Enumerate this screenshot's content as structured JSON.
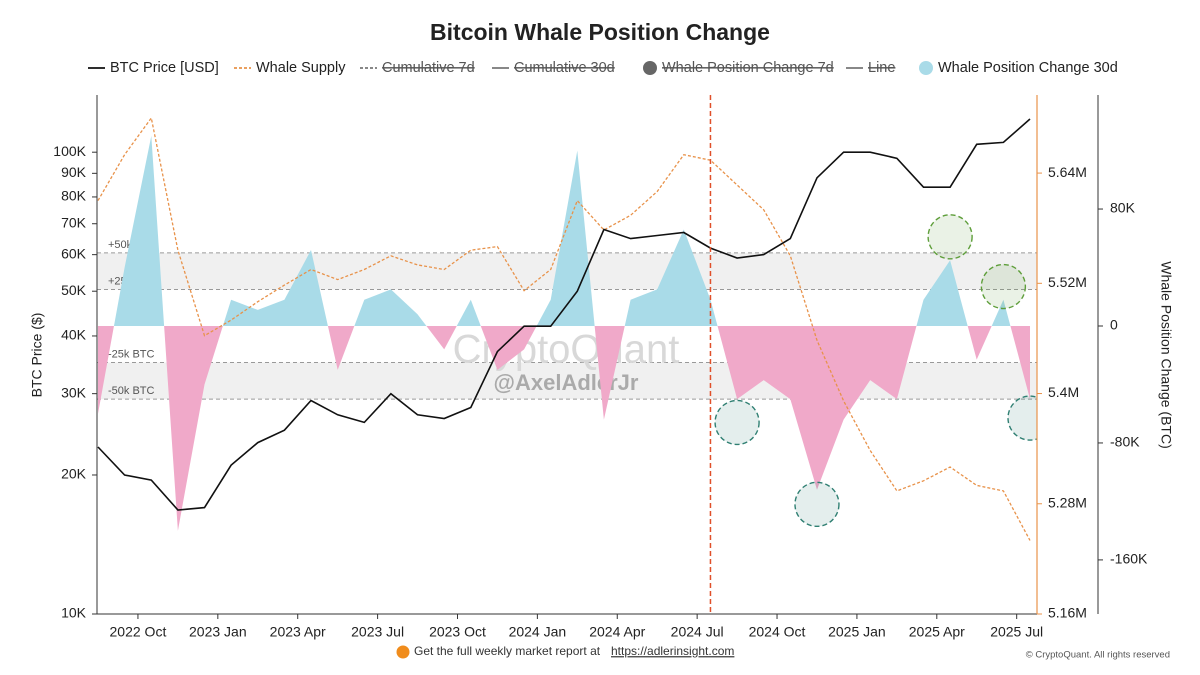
{
  "chart_data": {
    "type": "line",
    "title": "Bitcoin Whale Position Change",
    "y_label": "BTC Price ($)",
    "y3_label": "Whale Position Change (BTC)",
    "x": [
      "2022-08",
      "2022-09",
      "2022-10",
      "2022-11",
      "2022-12",
      "2023-01",
      "2023-02",
      "2023-03",
      "2023-04",
      "2023-05",
      "2023-06",
      "2023-07",
      "2023-08",
      "2023-09",
      "2023-10",
      "2023-11",
      "2023-12",
      "2024-01",
      "2024-02",
      "2024-03",
      "2024-04",
      "2024-05",
      "2024-06",
      "2024-07",
      "2024-08",
      "2024-09",
      "2024-10",
      "2024-11",
      "2024-12",
      "2025-01",
      "2025-02",
      "2025-03",
      "2025-04",
      "2025-05",
      "2025-06",
      "2025-07"
    ],
    "xlim": [
      "2022-08",
      "2025-07"
    ],
    "xticks": [
      {
        "value": "2022-10",
        "label": "2022 Oct"
      },
      {
        "value": "2023-01",
        "label": "2023 Jan"
      },
      {
        "value": "2023-04",
        "label": "2023 Apr"
      },
      {
        "value": "2023-07",
        "label": "2023 Jul"
      },
      {
        "value": "2023-10",
        "label": "2023 Oct"
      },
      {
        "value": "2024-01",
        "label": "2024 Jan"
      },
      {
        "value": "2024-04",
        "label": "2024 Apr"
      },
      {
        "value": "2024-07",
        "label": "2024 Jul"
      },
      {
        "value": "2024-10",
        "label": "2024 Oct"
      },
      {
        "value": "2025-01",
        "label": "2025 Jan"
      },
      {
        "value": "2025-04",
        "label": "2025 Apr"
      },
      {
        "value": "2025-07",
        "label": "2025 Jul"
      }
    ],
    "ylim": [
      10000,
      133000
    ],
    "log_y": true,
    "yticks": [
      {
        "value": 10000,
        "label": "10K"
      },
      {
        "value": 20000,
        "label": "20K"
      },
      {
        "value": 30000,
        "label": "30K"
      },
      {
        "value": 40000,
        "label": "40K"
      },
      {
        "value": 50000,
        "label": "50K"
      },
      {
        "value": 60000,
        "label": "60K"
      },
      {
        "value": 70000,
        "label": "70K"
      },
      {
        "value": 80000,
        "label": "80K"
      },
      {
        "value": 90000,
        "label": "90K"
      },
      {
        "value": 100000,
        "label": "100K"
      }
    ],
    "y2lim": [
      5160000,
      5725000
    ],
    "y2ticks": [
      {
        "value": 5160000,
        "label": "5.16M"
      },
      {
        "value": 5280000,
        "label": "5.28M"
      },
      {
        "value": 5400000,
        "label": "5.4M"
      },
      {
        "value": 5520000,
        "label": "5.52M"
      },
      {
        "value": 5640000,
        "label": "5.64M"
      }
    ],
    "y3lim": [
      -197000,
      158000
    ],
    "y3ticks": [
      {
        "value": 80000,
        "label": "80K"
      },
      0,
      {
        "value": -80000,
        "label": "-80K"
      },
      {
        "value": -160000,
        "label": "-160K"
      }
    ],
    "series": [
      {
        "name": "BTC Price [USD]",
        "color": "#111111",
        "axis": "y",
        "marker": "line",
        "values": [
          23000,
          20000,
          19500,
          16800,
          17000,
          21000,
          23500,
          25000,
          29000,
          27000,
          26000,
          30000,
          27000,
          26500,
          28000,
          37000,
          42000,
          42000,
          50000,
          68000,
          65000,
          66000,
          67000,
          62000,
          59000,
          60000,
          65000,
          88000,
          100000,
          100000,
          97000,
          84000,
          84000,
          104000,
          105000,
          118000
        ]
      },
      {
        "name": "Whale Supply",
        "color": "#e8924a",
        "axis": "y2",
        "marker": "dashed",
        "values": [
          5610000,
          5660000,
          5700000,
          5556000,
          5463000,
          5480000,
          5500000,
          5518000,
          5535000,
          5524000,
          5535000,
          5550000,
          5540000,
          5535000,
          5556000,
          5560000,
          5512000,
          5535000,
          5610000,
          5578000,
          5594000,
          5620000,
          5660000,
          5654000,
          5627000,
          5600000,
          5550000,
          5458000,
          5392000,
          5338000,
          5294000,
          5305000,
          5320000,
          5300000,
          5294000,
          5240000
        ]
      },
      {
        "name": "Whale Position Change 30d",
        "axis": "y3",
        "marker": "circle",
        "color": "#a9dbe8",
        "negative_color": "#f0a9c9",
        "values": [
          -60000,
          40000,
          130000,
          -140000,
          -40000,
          18000,
          11000,
          18000,
          52000,
          -30000,
          18000,
          25000,
          8000,
          -16000,
          18000,
          -30000,
          -16000,
          18000,
          120000,
          -64000,
          18000,
          25000,
          66000,
          18000,
          -50000,
          -37000,
          -50000,
          -112000,
          -64000,
          -37000,
          -50000,
          18000,
          45000,
          -23000,
          18000,
          -50000
        ]
      }
    ],
    "hidden_series": [
      {
        "name": "Cumulative 7d",
        "marker": "dashed",
        "color": "#777777"
      },
      {
        "name": "Cumulative 30d",
        "marker": "line",
        "color": "#777777"
      },
      {
        "name": "Whale Position Change 7d",
        "marker": "circle",
        "color": "#666666"
      },
      {
        "name": "Line",
        "marker": "line",
        "color": "#777777"
      }
    ],
    "bands": [
      {
        "value": 50000,
        "label": "+50k BTC"
      },
      {
        "value": 25000,
        "label": "+25k BTC"
      },
      {
        "value": -25000,
        "label": "-25k BTC"
      },
      {
        "value": -50000,
        "label": "-50k BTC"
      }
    ],
    "event_line": {
      "x": "2024-07",
      "color": "#e0502a"
    },
    "highlights": [
      {
        "x": "2024-08",
        "y": -66000,
        "color": "#2f7f72"
      },
      {
        "x": "2024-11",
        "y": -122000,
        "color": "#2f7f72"
      },
      {
        "x": "2025-04",
        "y": 61000,
        "color": "#5e9e3a"
      },
      {
        "x": "2025-06",
        "y": 27000,
        "color": "#5e9e3a"
      },
      {
        "x": "2025-07",
        "y": -63000,
        "color": "#2f7f72"
      }
    ],
    "watermark": "CryptoQuant",
    "author": "@AxelAdlerJr",
    "footer": "Get the full weekly market report at",
    "footer_link": "https://adlerinsight.com",
    "copyright": "© CryptoQuant. All rights reserved"
  }
}
